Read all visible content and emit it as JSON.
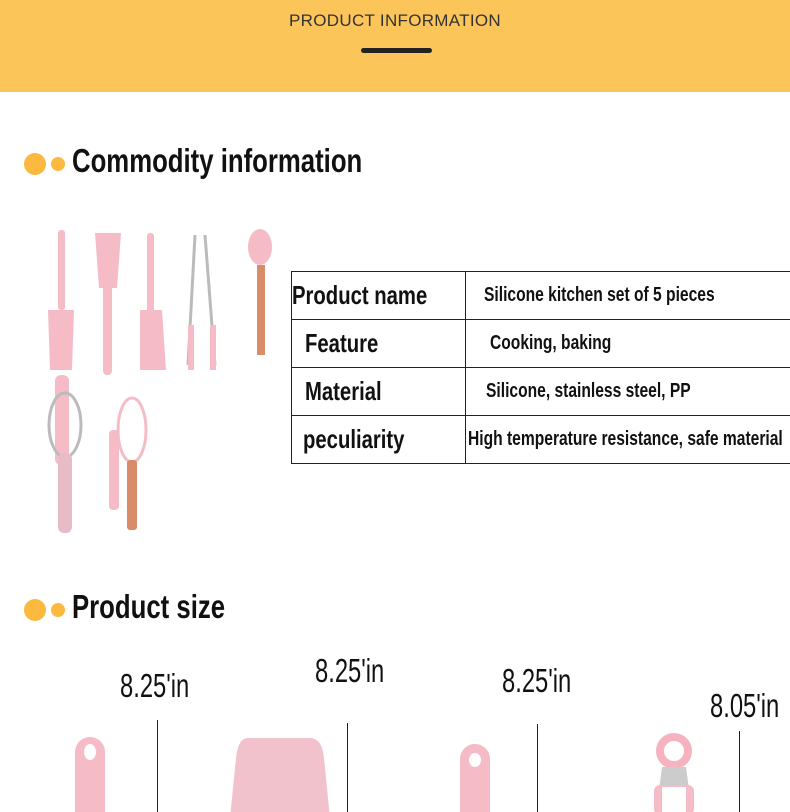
{
  "banner": {
    "title": "PRODUCT INFORMATION"
  },
  "commodity": {
    "title": "Commodity information",
    "rows": [
      {
        "label": "Product name",
        "value": "Silicone kitchen set of 5 pieces"
      },
      {
        "label": "Feature",
        "value": "Cooking, baking"
      },
      {
        "label": "Material",
        "value": "Silicone, stainless steel, PP"
      },
      {
        "label": "peculiarity",
        "value": "High temperature resistance, safe material"
      }
    ]
  },
  "size": {
    "title": "Product size",
    "dimensions": [
      "8.25'in",
      "8.25'in",
      "8.25'in",
      "8.05'in"
    ]
  },
  "colors": {
    "accent": "#fcc55a",
    "dot": "#fcb940",
    "silicone_pink": "#f4b8c4",
    "rose_gold": "#d98c6a"
  }
}
